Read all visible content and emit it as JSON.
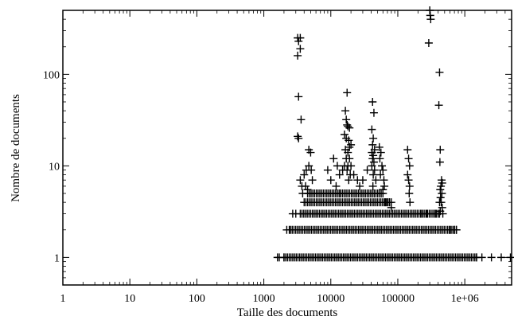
{
  "chart_data": {
    "type": "scatter",
    "title": "",
    "xlabel": "Taille des documents",
    "ylabel": "Nombre de documents",
    "xscale": "log",
    "yscale": "log",
    "xlim": [
      1,
      5000000
    ],
    "ylim": [
      0.5,
      500
    ],
    "grid": false,
    "legend": "none",
    "marker": "+",
    "color": "#000000",
    "x_ticks": [
      {
        "value": 1,
        "label": "1"
      },
      {
        "value": 10,
        "label": "10"
      },
      {
        "value": 100,
        "label": "100"
      },
      {
        "value": 1000,
        "label": "1000"
      },
      {
        "value": 10000,
        "label": "10000"
      },
      {
        "value": 100000,
        "label": "100000"
      },
      {
        "value": 1000000,
        "label": "1e+06"
      }
    ],
    "y_ticks": [
      {
        "value": 1,
        "label": "1"
      },
      {
        "value": 10,
        "label": "10"
      },
      {
        "value": 100,
        "label": "100"
      }
    ],
    "dense_bands": [
      {
        "y": 1,
        "x_from": 2000,
        "x_to": 1500000
      },
      {
        "y": 2,
        "x_from": 2500,
        "x_to": 750000
      },
      {
        "y": 3,
        "x_from": 3500,
        "x_to": 400000
      },
      {
        "y": 4,
        "x_from": 4000,
        "x_to": 80000
      },
      {
        "y": 5,
        "x_from": 4500,
        "x_to": 60000
      }
    ],
    "points": [
      [
        1600,
        1
      ],
      [
        1700,
        1
      ],
      [
        2000,
        1
      ],
      [
        1500000,
        1
      ],
      [
        1800000,
        1
      ],
      [
        2500000,
        1
      ],
      [
        3500000,
        1
      ],
      [
        4800000,
        1
      ],
      [
        2200,
        2
      ],
      [
        2400,
        2
      ],
      [
        600000,
        2
      ],
      [
        700000,
        2
      ],
      [
        750000,
        2
      ],
      [
        2700,
        3
      ],
      [
        3000,
        3
      ],
      [
        230000,
        3
      ],
      [
        270000,
        3
      ],
      [
        370000,
        3
      ],
      [
        420000,
        3
      ],
      [
        470000,
        3
      ],
      [
        3200,
        250
      ],
      [
        3500,
        250
      ],
      [
        3300,
        230
      ],
      [
        3200,
        160
      ],
      [
        3500,
        190
      ],
      [
        3300,
        57
      ],
      [
        3600,
        32
      ],
      [
        3200,
        21
      ],
      [
        3300,
        20
      ],
      [
        4000,
        8
      ],
      [
        4300,
        9
      ],
      [
        4700,
        10
      ],
      [
        5100,
        9
      ],
      [
        5300,
        7
      ],
      [
        4200,
        6
      ],
      [
        4500,
        5.5
      ],
      [
        4700,
        15
      ],
      [
        5000,
        14
      ],
      [
        3500,
        7
      ],
      [
        3700,
        6
      ],
      [
        3800,
        5
      ],
      [
        9000,
        9
      ],
      [
        11000,
        12
      ],
      [
        12500,
        10
      ],
      [
        13500,
        8
      ],
      [
        10000,
        7
      ],
      [
        12000,
        6
      ],
      [
        14000,
        5
      ],
      [
        17500,
        63
      ],
      [
        16500,
        40
      ],
      [
        17000,
        32
      ],
      [
        17500,
        28
      ],
      [
        18000,
        27
      ],
      [
        19000,
        26
      ],
      [
        16000,
        22
      ],
      [
        17000,
        20
      ],
      [
        18500,
        19
      ],
      [
        20000,
        17
      ],
      [
        19000,
        16
      ],
      [
        16500,
        15
      ],
      [
        18000,
        14
      ],
      [
        17000,
        12
      ],
      [
        19000,
        12
      ],
      [
        16000,
        10
      ],
      [
        18000,
        10
      ],
      [
        20000,
        10
      ],
      [
        17500,
        9
      ],
      [
        19500,
        8
      ],
      [
        18500,
        7
      ],
      [
        15000,
        9
      ],
      [
        22000,
        8
      ],
      [
        25000,
        7
      ],
      [
        27000,
        6
      ],
      [
        30000,
        7
      ],
      [
        35000,
        9
      ],
      [
        42000,
        50
      ],
      [
        44000,
        38
      ],
      [
        41000,
        25
      ],
      [
        43000,
        20
      ],
      [
        42000,
        17
      ],
      [
        45000,
        15
      ],
      [
        41000,
        14
      ],
      [
        43000,
        13
      ],
      [
        42000,
        12
      ],
      [
        44000,
        11
      ],
      [
        41000,
        10
      ],
      [
        45000,
        9
      ],
      [
        43000,
        8
      ],
      [
        47000,
        7
      ],
      [
        42500,
        6
      ],
      [
        53000,
        16
      ],
      [
        56000,
        14
      ],
      [
        54000,
        12
      ],
      [
        58000,
        10
      ],
      [
        60000,
        9
      ],
      [
        55000,
        8
      ],
      [
        62000,
        7
      ],
      [
        63000,
        6
      ],
      [
        60000,
        5.5
      ],
      [
        65000,
        4
      ],
      [
        70000,
        4
      ],
      [
        75000,
        4
      ],
      [
        80000,
        3.5
      ],
      [
        140000,
        15
      ],
      [
        145000,
        12
      ],
      [
        150000,
        10
      ],
      [
        140000,
        8
      ],
      [
        145000,
        7
      ],
      [
        150000,
        6
      ],
      [
        148000,
        5
      ],
      [
        152000,
        4
      ],
      [
        300000,
        500
      ],
      [
        305000,
        440
      ],
      [
        310000,
        400
      ],
      [
        290000,
        220
      ],
      [
        420000,
        105
      ],
      [
        410000,
        46
      ],
      [
        430000,
        15
      ],
      [
        425000,
        11
      ],
      [
        450000,
        7
      ],
      [
        460000,
        6.5
      ],
      [
        440000,
        6
      ],
      [
        430000,
        5.5
      ],
      [
        455000,
        5
      ],
      [
        435000,
        4.5
      ],
      [
        420000,
        4
      ],
      [
        445000,
        4
      ],
      [
        460000,
        3.5
      ],
      [
        430000,
        3.2
      ]
    ]
  }
}
